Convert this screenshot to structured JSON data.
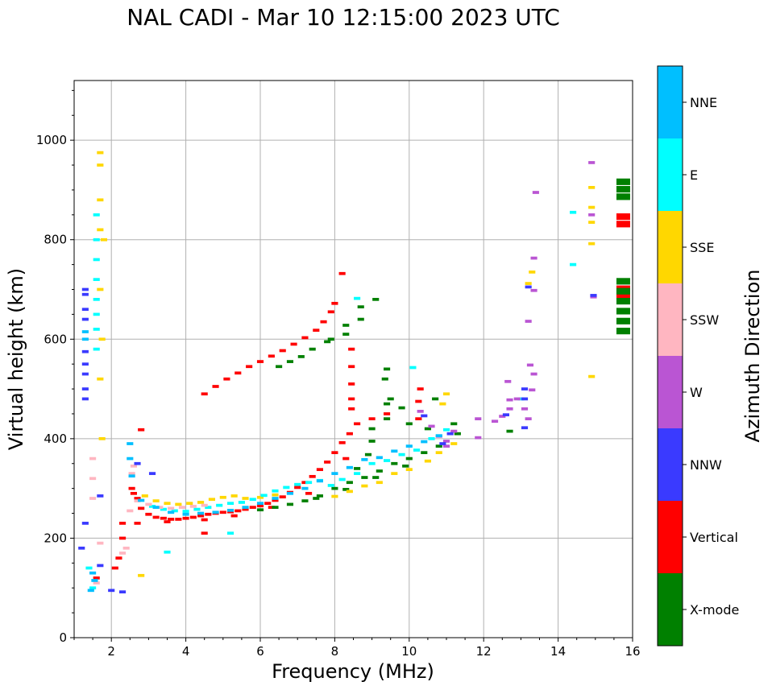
{
  "chart_data": {
    "type": "scatter",
    "title": "NAL CADI - Mar 10 12:15:00 2023 UTC",
    "xlabel": "Frequency (MHz)",
    "ylabel": "Virtual height (km)",
    "xlim": [
      1,
      16
    ],
    "ylim": [
      0,
      1120
    ],
    "xticks": [
      2,
      4,
      6,
      8,
      10,
      12,
      14,
      16
    ],
    "yticks": [
      0,
      200,
      400,
      600,
      800,
      1000
    ],
    "grid": true,
    "colorbar": {
      "label": "Azimuth Direction",
      "categories": [
        {
          "name": "NNE",
          "color": "#00bfff"
        },
        {
          "name": "E",
          "color": "#00ffff"
        },
        {
          "name": "SSE",
          "color": "#ffd700"
        },
        {
          "name": "SSW",
          "color": "#ffb6c1"
        },
        {
          "name": "W",
          "color": "#ba55d3"
        },
        {
          "name": "NNW",
          "color": "#3a3aff"
        },
        {
          "name": "Vertical",
          "color": "#ff0000"
        },
        {
          "name": "X-mode",
          "color": "#008000"
        }
      ]
    },
    "series": [
      {
        "name": "Vertical",
        "points": [
          [
            2.55,
            300
          ],
          [
            2.6,
            290
          ],
          [
            2.7,
            280
          ],
          [
            2.8,
            260
          ],
          [
            3.0,
            248
          ],
          [
            3.2,
            242
          ],
          [
            3.4,
            240
          ],
          [
            3.6,
            238
          ],
          [
            3.8,
            238
          ],
          [
            4.0,
            240
          ],
          [
            4.2,
            242
          ],
          [
            4.4,
            245
          ],
          [
            4.6,
            248
          ],
          [
            4.8,
            250
          ],
          [
            5.0,
            252
          ],
          [
            5.2,
            253
          ],
          [
            5.4,
            255
          ],
          [
            5.6,
            258
          ],
          [
            5.8,
            262
          ],
          [
            6.0,
            265
          ],
          [
            6.2,
            270
          ],
          [
            6.4,
            276
          ],
          [
            6.6,
            283
          ],
          [
            6.8,
            292
          ],
          [
            7.0,
            302
          ],
          [
            7.2,
            312
          ],
          [
            7.4,
            324
          ],
          [
            7.6,
            338
          ],
          [
            7.8,
            353
          ],
          [
            8.0,
            372
          ],
          [
            8.2,
            392
          ],
          [
            8.4,
            410
          ],
          [
            8.6,
            430
          ],
          [
            9.0,
            440
          ],
          [
            9.4,
            450
          ],
          [
            2.7,
            230
          ],
          [
            3.5,
            233
          ],
          [
            4.5,
            237
          ],
          [
            5.3,
            245
          ],
          [
            6.3,
            262
          ],
          [
            7.3,
            290
          ],
          [
            8.3,
            360
          ],
          [
            4.5,
            490
          ],
          [
            4.8,
            505
          ],
          [
            5.1,
            520
          ],
          [
            5.4,
            532
          ],
          [
            5.7,
            545
          ],
          [
            6.0,
            555
          ],
          [
            6.3,
            566
          ],
          [
            6.6,
            577
          ],
          [
            6.9,
            590
          ],
          [
            7.2,
            603
          ],
          [
            7.5,
            618
          ],
          [
            7.7,
            635
          ],
          [
            7.9,
            655
          ],
          [
            8.0,
            672
          ],
          [
            8.2,
            732
          ],
          [
            8.45,
            580
          ],
          [
            8.45,
            545
          ],
          [
            8.45,
            510
          ],
          [
            8.45,
            480
          ],
          [
            8.45,
            460
          ],
          [
            10.25,
            440
          ],
          [
            10.25,
            475
          ],
          [
            10.3,
            500
          ],
          [
            2.3,
            200
          ],
          [
            2.3,
            230
          ],
          [
            2.8,
            418
          ],
          [
            4.5,
            210
          ],
          [
            1.6,
            120
          ],
          [
            15.75,
            705
          ],
          [
            15.75,
            692
          ],
          [
            15.75,
            835
          ],
          [
            15.75,
            850
          ],
          [
            2.1,
            140
          ],
          [
            2.2,
            160
          ]
        ]
      },
      {
        "name": "X-mode",
        "points": [
          [
            6.0,
            257
          ],
          [
            6.4,
            262
          ],
          [
            6.8,
            268
          ],
          [
            7.2,
            275
          ],
          [
            7.6,
            285
          ],
          [
            8.0,
            300
          ],
          [
            8.4,
            312
          ],
          [
            8.8,
            322
          ],
          [
            9.2,
            335
          ],
          [
            9.6,
            350
          ],
          [
            10.0,
            360
          ],
          [
            10.4,
            372
          ],
          [
            10.8,
            385
          ],
          [
            7.5,
            280
          ],
          [
            8.3,
            298
          ],
          [
            9.1,
            322
          ],
          [
            9.9,
            345
          ],
          [
            8.6,
            340
          ],
          [
            8.9,
            368
          ],
          [
            9.0,
            395
          ],
          [
            9.0,
            420
          ],
          [
            9.4,
            440
          ],
          [
            9.4,
            470
          ],
          [
            9.35,
            520
          ],
          [
            9.4,
            540
          ],
          [
            9.1,
            680
          ],
          [
            8.7,
            665
          ],
          [
            8.7,
            640
          ],
          [
            8.3,
            628
          ],
          [
            8.3,
            610
          ],
          [
            7.9,
            600
          ],
          [
            7.8,
            595
          ],
          [
            7.4,
            580
          ],
          [
            7.1,
            565
          ],
          [
            6.8,
            555
          ],
          [
            6.5,
            545
          ],
          [
            9.5,
            480
          ],
          [
            9.8,
            462
          ],
          [
            10.0,
            430
          ],
          [
            10.5,
            420
          ],
          [
            10.7,
            480
          ],
          [
            11.2,
            430
          ],
          [
            11.3,
            410
          ],
          [
            12.7,
            415
          ],
          [
            15.75,
            620
          ],
          [
            15.75,
            640
          ],
          [
            15.75,
            660
          ],
          [
            15.75,
            680
          ],
          [
            15.75,
            700
          ],
          [
            15.75,
            720
          ],
          [
            15.75,
            890
          ],
          [
            15.75,
            905
          ],
          [
            15.75,
            920
          ]
        ]
      },
      {
        "name": "SSE",
        "points": [
          [
            2.9,
            285
          ],
          [
            3.2,
            275
          ],
          [
            3.5,
            270
          ],
          [
            3.8,
            268
          ],
          [
            4.1,
            270
          ],
          [
            4.4,
            272
          ],
          [
            4.7,
            278
          ],
          [
            5.0,
            282
          ],
          [
            5.3,
            285
          ],
          [
            5.6,
            280
          ],
          [
            6.0,
            282
          ],
          [
            6.4,
            287
          ],
          [
            8.0,
            284
          ],
          [
            8.4,
            294
          ],
          [
            8.8,
            305
          ],
          [
            9.2,
            312
          ],
          [
            9.6,
            330
          ],
          [
            10.0,
            338
          ],
          [
            10.5,
            355
          ],
          [
            10.8,
            372
          ],
          [
            11.2,
            390
          ],
          [
            11.0,
            490
          ],
          [
            10.9,
            470
          ],
          [
            1.7,
            975
          ],
          [
            1.7,
            950
          ],
          [
            1.7,
            880
          ],
          [
            1.7,
            820
          ],
          [
            1.7,
            700
          ],
          [
            1.75,
            600
          ],
          [
            1.7,
            520
          ],
          [
            1.75,
            400
          ],
          [
            2.8,
            125
          ],
          [
            1.8,
            800
          ],
          [
            14.9,
            905
          ],
          [
            14.9,
            865
          ],
          [
            14.9,
            835
          ],
          [
            14.9,
            792
          ],
          [
            14.9,
            525
          ],
          [
            13.3,
            735
          ],
          [
            13.2,
            712
          ]
        ]
      },
      {
        "name": "E",
        "points": [
          [
            3.1,
            264
          ],
          [
            3.4,
            258
          ],
          [
            3.7,
            255
          ],
          [
            4.0,
            254
          ],
          [
            4.3,
            258
          ],
          [
            4.6,
            262
          ],
          [
            4.9,
            266
          ],
          [
            5.2,
            270
          ],
          [
            5.5,
            272
          ],
          [
            5.8,
            278
          ],
          [
            6.1,
            286
          ],
          [
            6.4,
            295
          ],
          [
            6.7,
            302
          ],
          [
            7.0,
            308
          ],
          [
            7.3,
            312
          ],
          [
            7.6,
            316
          ],
          [
            7.9,
            306
          ],
          [
            8.2,
            318
          ],
          [
            8.6,
            330
          ],
          [
            9.0,
            350
          ],
          [
            9.4,
            356
          ],
          [
            9.8,
            368
          ],
          [
            10.2,
            377
          ],
          [
            10.6,
            400
          ],
          [
            11.0,
            418
          ],
          [
            1.6,
            850
          ],
          [
            1.6,
            800
          ],
          [
            1.6,
            760
          ],
          [
            1.6,
            720
          ],
          [
            1.6,
            680
          ],
          [
            1.6,
            650
          ],
          [
            1.6,
            620
          ],
          [
            1.6,
            580
          ],
          [
            1.4,
            140
          ],
          [
            1.5,
            100
          ],
          [
            14.4,
            855
          ],
          [
            14.4,
            750
          ],
          [
            10.1,
            543
          ],
          [
            8.6,
            682
          ],
          [
            5.2,
            210
          ],
          [
            3.5,
            172
          ],
          [
            13.0,
            480
          ]
        ]
      },
      {
        "name": "SSW",
        "points": [
          [
            2.7,
            275
          ],
          [
            3.0,
            268
          ],
          [
            3.3,
            262
          ],
          [
            3.6,
            260
          ],
          [
            3.9,
            262
          ],
          [
            4.2,
            264
          ],
          [
            4.5,
            266
          ],
          [
            2.55,
            330
          ],
          [
            2.6,
            345
          ],
          [
            1.5,
            360
          ],
          [
            1.5,
            320
          ],
          [
            1.5,
            280
          ],
          [
            2.4,
            180
          ],
          [
            2.3,
            170
          ],
          [
            1.6,
            110
          ],
          [
            2.5,
            255
          ],
          [
            1.7,
            190
          ]
        ]
      },
      {
        "name": "W",
        "points": [
          [
            11.0,
            395
          ],
          [
            11.2,
            415
          ],
          [
            11.85,
            402
          ],
          [
            11.85,
            440
          ],
          [
            12.3,
            435
          ],
          [
            12.5,
            445
          ],
          [
            12.7,
            460
          ],
          [
            12.7,
            478
          ],
          [
            12.65,
            515
          ],
          [
            12.9,
            480
          ],
          [
            13.1,
            460
          ],
          [
            13.2,
            440
          ],
          [
            13.3,
            498
          ],
          [
            13.35,
            530
          ],
          [
            13.25,
            548
          ],
          [
            13.2,
            636
          ],
          [
            13.35,
            698
          ],
          [
            13.35,
            763
          ],
          [
            13.4,
            895
          ],
          [
            14.9,
            955
          ],
          [
            14.9,
            850
          ],
          [
            14.95,
            685
          ],
          [
            10.3,
            455
          ],
          [
            10.6,
            425
          ],
          [
            10.8,
            405
          ],
          [
            11.0,
            385
          ]
        ]
      },
      {
        "name": "NNW",
        "points": [
          [
            1.3,
            700
          ],
          [
            1.3,
            690
          ],
          [
            1.3,
            660
          ],
          [
            1.3,
            640
          ],
          [
            1.3,
            575
          ],
          [
            1.3,
            550
          ],
          [
            1.3,
            530
          ],
          [
            1.3,
            500
          ],
          [
            1.3,
            480
          ],
          [
            2.7,
            350
          ],
          [
            3.1,
            330
          ],
          [
            12.6,
            448
          ],
          [
            13.1,
            480
          ],
          [
            13.1,
            500
          ],
          [
            13.1,
            422
          ],
          [
            13.2,
            705
          ],
          [
            14.95,
            688
          ],
          [
            10.4,
            446
          ],
          [
            1.7,
            285
          ],
          [
            2.0,
            95
          ],
          [
            2.3,
            92
          ],
          [
            1.3,
            230
          ],
          [
            1.2,
            180
          ],
          [
            1.7,
            145
          ],
          [
            10.9,
            390
          ],
          [
            11.1,
            410
          ]
        ]
      },
      {
        "name": "NNE",
        "points": [
          [
            2.8,
            276
          ],
          [
            3.2,
            262
          ],
          [
            3.6,
            252
          ],
          [
            4.0,
            248
          ],
          [
            4.4,
            250
          ],
          [
            4.8,
            252
          ],
          [
            5.2,
            256
          ],
          [
            5.6,
            262
          ],
          [
            6.0,
            270
          ],
          [
            6.4,
            280
          ],
          [
            6.8,
            290
          ],
          [
            7.2,
            300
          ],
          [
            7.6,
            315
          ],
          [
            8.0,
            330
          ],
          [
            8.4,
            342
          ],
          [
            8.8,
            358
          ],
          [
            9.2,
            362
          ],
          [
            9.6,
            375
          ],
          [
            10.0,
            385
          ],
          [
            10.4,
            394
          ],
          [
            10.8,
            406
          ],
          [
            2.5,
            390
          ],
          [
            2.5,
            360
          ],
          [
            2.55,
            325
          ],
          [
            1.3,
            615
          ],
          [
            1.3,
            600
          ],
          [
            1.5,
            130
          ],
          [
            1.55,
            115
          ],
          [
            1.45,
            95
          ]
        ]
      }
    ]
  }
}
